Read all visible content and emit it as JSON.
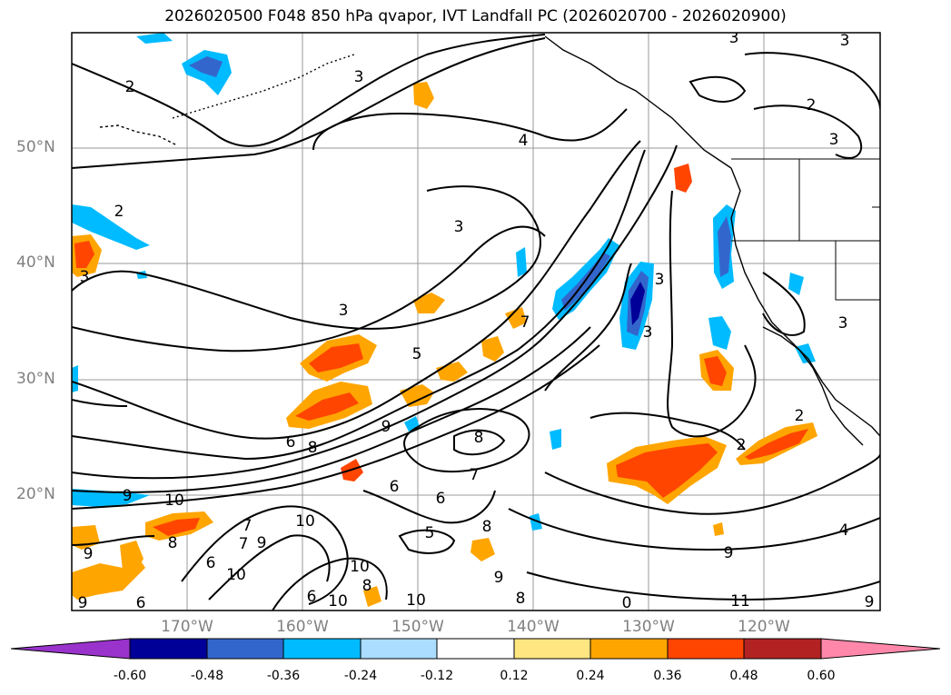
{
  "title": "2026020500 F048 850 hPa qvapor, IVT Landfall PC (2026020700 - 2026020900)",
  "lat_labels": [
    "50°N",
    "40°N",
    "30°N",
    "20°N"
  ],
  "lon_labels": [
    "170°W",
    "160°W",
    "150°W",
    "140°W",
    "130°W",
    "120°W"
  ],
  "colorbar": {
    "ticks": [
      "-0.60",
      "-0.48",
      "-0.36",
      "-0.24",
      "-0.12",
      "0.12",
      "0.24",
      "0.36",
      "0.48",
      "0.60"
    ],
    "colors": [
      "#9933cc",
      "#000099",
      "#3366cc",
      "#00bbff",
      "#aaddff",
      "#ffffff",
      "#ffe680",
      "#ffa500",
      "#ff4500",
      "#b22222",
      "#ff88aa"
    ]
  },
  "contour_labels": [
    "2",
    "3",
    "3",
    "4",
    "3",
    "2",
    "3",
    "3",
    "3",
    "3",
    "5",
    "7",
    "3",
    "3",
    "6",
    "8",
    "9",
    "8",
    "7",
    "6",
    "6",
    "10",
    "9",
    "7",
    "10",
    "9",
    "10",
    "6",
    "8",
    "10",
    "5",
    "8",
    "6",
    "8",
    "9",
    "10",
    "8",
    "0",
    "11",
    "9",
    "2",
    "2",
    "3",
    "4",
    "9",
    "7",
    "9",
    "6",
    "10",
    "9",
    "2"
  ]
}
